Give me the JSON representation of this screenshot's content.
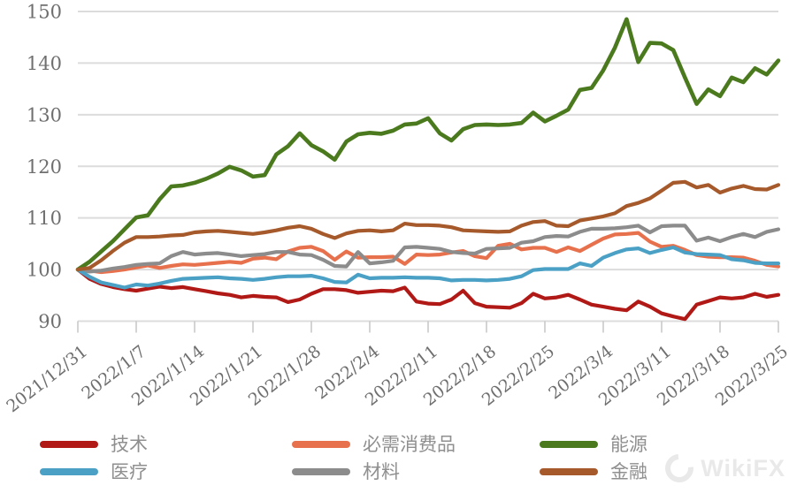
{
  "watermark": {
    "text": "WikiFX"
  },
  "style": {
    "grid_color": "#dcdcdc",
    "tick_color": "#c9c9c9",
    "axis_label_color": "#6f6f6f",
    "legend_text_color": "#8f8f8f",
    "background": "#ffffff"
  },
  "chart_data": {
    "type": "line",
    "title": "",
    "xlabel": "",
    "ylabel": "",
    "ylim": [
      90,
      150
    ],
    "y_ticks": [
      90,
      100,
      110,
      120,
      130,
      140,
      150
    ],
    "grid": "horizontal",
    "legend_position": "bottom",
    "x_tick_labels": [
      "2021/12/31",
      "2022/1/7",
      "2022/1/14",
      "2022/1/21",
      "2022/1/28",
      "2022/2/4",
      "2022/2/11",
      "2022/2/18",
      "2022/2/25",
      "2022/3/4",
      "2022/3/11",
      "2022/3/18",
      "2022/3/25"
    ],
    "tick_every_n_points": 5,
    "dates": [
      "2021/12/31",
      "2022/1/3",
      "2022/1/4",
      "2022/1/5",
      "2022/1/6",
      "2022/1/7",
      "2022/1/10",
      "2022/1/11",
      "2022/1/12",
      "2022/1/13",
      "2022/1/14",
      "2022/1/17",
      "2022/1/18",
      "2022/1/19",
      "2022/1/20",
      "2022/1/21",
      "2022/1/24",
      "2022/1/25",
      "2022/1/26",
      "2022/1/27",
      "2022/1/28",
      "2022/1/31",
      "2022/2/1",
      "2022/2/2",
      "2022/2/3",
      "2022/2/4",
      "2022/2/7",
      "2022/2/8",
      "2022/2/9",
      "2022/2/10",
      "2022/2/11",
      "2022/2/14",
      "2022/2/15",
      "2022/2/16",
      "2022/2/17",
      "2022/2/18",
      "2022/2/21",
      "2022/2/22",
      "2022/2/23",
      "2022/2/24",
      "2022/2/25",
      "2022/2/28",
      "2022/3/1",
      "2022/3/2",
      "2022/3/3",
      "2022/3/4",
      "2022/3/7",
      "2022/3/8",
      "2022/3/9",
      "2022/3/10",
      "2022/3/11",
      "2022/3/14",
      "2022/3/15",
      "2022/3/16",
      "2022/3/17",
      "2022/3/18",
      "2022/3/21",
      "2022/3/22",
      "2022/3/23",
      "2022/3/24",
      "2022/3/25"
    ],
    "series": [
      {
        "id": "tech",
        "name": "技术",
        "color": "#b11917",
        "values": [
          100,
          98.2,
          97.2,
          96.6,
          96.2,
          95.9,
          96.3,
          96.7,
          96.4,
          96.6,
          96.2,
          95.8,
          95.4,
          95.1,
          94.6,
          94.9,
          94.7,
          94.6,
          93.7,
          94.2,
          95.3,
          96.2,
          96.2,
          96.0,
          95.5,
          95.7,
          95.9,
          95.8,
          96.5,
          93.8,
          93.4,
          93.3,
          94.2,
          95.9,
          93.5,
          92.8,
          92.7,
          92.6,
          93.5,
          95.3,
          94.4,
          94.6,
          95.1,
          94.2,
          93.2,
          92.8,
          92.4,
          92.1,
          93.8,
          92.8,
          91.5,
          90.9,
          90.4,
          93.2,
          93.9,
          94.6,
          94.4,
          94.6,
          95.3,
          94.7,
          95.1
        ]
      },
      {
        "id": "consumer-staples",
        "name": "必需消费品",
        "color": "#e8714d",
        "values": [
          100,
          99.8,
          99.5,
          99.7,
          100.0,
          100.4,
          100.8,
          100.3,
          100.7,
          101.0,
          100.9,
          101.1,
          101.3,
          101.5,
          101.3,
          102.1,
          102.3,
          102.0,
          103.5,
          104.2,
          104.4,
          103.6,
          101.9,
          103.5,
          102.3,
          102.4,
          102.4,
          102.5,
          101.1,
          102.9,
          102.8,
          102.9,
          103.3,
          103.6,
          102.6,
          102.2,
          104.6,
          105.0,
          103.9,
          104.2,
          104.2,
          103.4,
          104.3,
          103.6,
          104.8,
          106.0,
          106.8,
          106.9,
          107.1,
          105.4,
          104.4,
          104.6,
          103.8,
          102.8,
          102.5,
          102.4,
          102.4,
          102.3,
          101.7,
          100.9,
          100.6
        ]
      },
      {
        "id": "materials",
        "name": "材料",
        "color": "#8c8c8c",
        "values": [
          100,
          99.6,
          99.8,
          100.2,
          100.5,
          100.9,
          101.1,
          101.2,
          102.6,
          103.4,
          102.9,
          103.1,
          103.2,
          102.9,
          102.6,
          102.8,
          103.0,
          103.4,
          103.4,
          102.9,
          102.8,
          101.9,
          100.7,
          100.6,
          103.4,
          101.2,
          101.4,
          101.7,
          104.3,
          104.4,
          104.2,
          104.0,
          103.4,
          103.2,
          103.1,
          104.0,
          104.1,
          104.2,
          105.2,
          105.5,
          106.3,
          106.5,
          106.4,
          107.3,
          107.9,
          107.9,
          108.0,
          108.2,
          108.5,
          107.2,
          108.4,
          108.5,
          108.5,
          105.6,
          106.2,
          105.5,
          106.3,
          106.9,
          106.3,
          107.3,
          107.8
        ]
      },
      {
        "id": "healthcare",
        "name": "医疗",
        "color": "#4aa1c5",
        "values": [
          100,
          98.6,
          97.5,
          97.0,
          96.5,
          97.1,
          96.9,
          97.3,
          97.8,
          98.2,
          98.3,
          98.4,
          98.5,
          98.3,
          98.2,
          98.0,
          98.2,
          98.5,
          98.7,
          98.7,
          98.8,
          98.3,
          97.6,
          97.5,
          99.0,
          98.3,
          98.4,
          98.4,
          98.5,
          98.4,
          98.4,
          98.3,
          97.9,
          98.0,
          98.0,
          97.9,
          98.0,
          98.2,
          98.7,
          99.9,
          100.1,
          100.1,
          100.1,
          101.2,
          100.7,
          102.3,
          103.2,
          103.9,
          104.1,
          103.2,
          103.8,
          104.3,
          103.3,
          103.0,
          102.9,
          102.8,
          102.0,
          101.8,
          101.3,
          101.2,
          101.2
        ]
      },
      {
        "id": "energy",
        "name": "能源",
        "color": "#4b7a1e",
        "values": [
          100,
          101.5,
          103.5,
          105.5,
          107.8,
          110.1,
          110.5,
          113.6,
          116.1,
          116.3,
          116.8,
          117.6,
          118.6,
          119.9,
          119.2,
          118.0,
          118.3,
          122.3,
          123.9,
          126.4,
          124.1,
          122.9,
          121.3,
          124.8,
          126.2,
          126.5,
          126.3,
          126.9,
          128.1,
          128.3,
          129.3,
          126.4,
          125.0,
          127.2,
          128.0,
          128.1,
          128.0,
          128.1,
          128.4,
          130.4,
          128.7,
          129.8,
          131.0,
          134.8,
          135.2,
          138.6,
          143.0,
          148.5,
          140.2,
          143.9,
          143.8,
          142.5,
          137.2,
          132.1,
          134.9,
          133.6,
          137.2,
          136.3,
          139.0,
          137.8,
          140.5
        ]
      },
      {
        "id": "financials",
        "name": "金融",
        "color": "#a65a2c",
        "values": [
          100,
          100.3,
          101.8,
          103.6,
          105.2,
          106.3,
          106.3,
          106.4,
          106.6,
          106.7,
          107.2,
          107.4,
          107.5,
          107.3,
          107.1,
          106.9,
          107.2,
          107.6,
          108.1,
          108.4,
          107.9,
          106.9,
          106.1,
          107.0,
          107.5,
          107.6,
          107.4,
          107.6,
          108.9,
          108.6,
          108.6,
          108.5,
          108.2,
          107.6,
          107.5,
          107.4,
          107.3,
          107.4,
          108.5,
          109.2,
          109.4,
          108.5,
          108.4,
          109.5,
          109.9,
          110.3,
          110.9,
          112.3,
          112.9,
          113.8,
          115.3,
          116.8,
          117.0,
          115.9,
          116.4,
          114.9,
          115.7,
          116.2,
          115.6,
          115.5,
          116.4
        ]
      }
    ],
    "legend_order": [
      "技术",
      "医疗",
      "必需消费品",
      "材料",
      "能源",
      "金融"
    ]
  }
}
